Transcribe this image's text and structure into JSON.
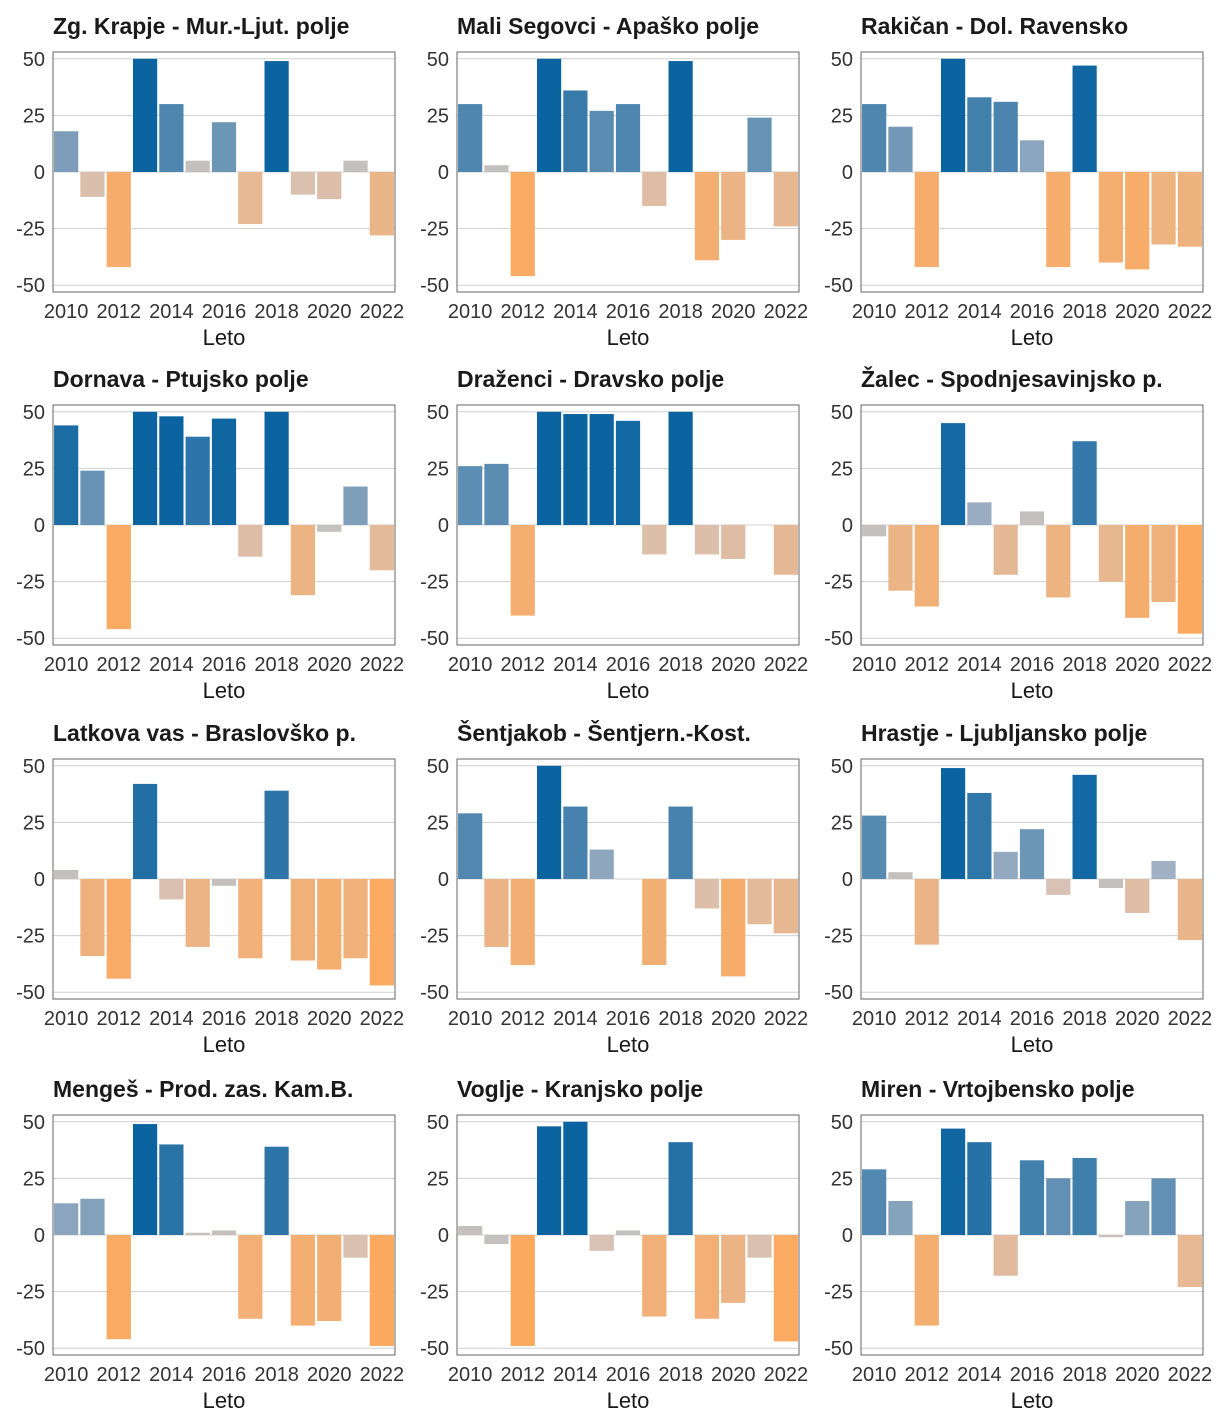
{
  "colors": {
    "blue_strong": "#0b64a0",
    "blue_pale": "#a8b4c4",
    "orange_strong": "#fba95f",
    "orange_pale": "#d7c2b7",
    "neutral": "#c4c0bd",
    "grid": "#d0d0d0",
    "border": "#666666"
  },
  "chart_data": [
    {
      "type": "bar",
      "title": "Zg. Krapje - Mur.-Ljut. polje",
      "xlabel": "Leto",
      "x": [
        2010,
        2011,
        2012,
        2013,
        2014,
        2015,
        2016,
        2017,
        2018,
        2019,
        2020,
        2021,
        2022
      ],
      "values": [
        18,
        -11,
        -42,
        50,
        30,
        5,
        22,
        -23,
        49,
        -10,
        -12,
        5,
        -28
      ],
      "ylim": [
        -53,
        53
      ],
      "yticks": [
        50,
        25,
        0,
        -25,
        -50
      ],
      "xticks": [
        2010,
        2012,
        2014,
        2016,
        2018,
        2020,
        2022
      ],
      "grid": true
    },
    {
      "type": "bar",
      "title": "Mali Segovci - Apaško polje",
      "xlabel": "Leto",
      "x": [
        2010,
        2011,
        2012,
        2013,
        2014,
        2015,
        2016,
        2017,
        2018,
        2019,
        2020,
        2021,
        2022
      ],
      "values": [
        30,
        3,
        -46,
        50,
        36,
        27,
        30,
        -15,
        49,
        -39,
        -30,
        24,
        -24
      ],
      "ylim": [
        -53,
        53
      ],
      "yticks": [
        50,
        25,
        0,
        -25,
        -50
      ],
      "xticks": [
        2010,
        2012,
        2014,
        2016,
        2018,
        2020,
        2022
      ],
      "grid": true
    },
    {
      "type": "bar",
      "title": "Rakičan - Dol. Ravensko",
      "xlabel": "Leto",
      "x": [
        2010,
        2011,
        2012,
        2013,
        2014,
        2015,
        2016,
        2017,
        2018,
        2019,
        2020,
        2021,
        2022
      ],
      "values": [
        30,
        20,
        -42,
        50,
        33,
        31,
        14,
        -42,
        47,
        -40,
        -43,
        -32,
        -33
      ],
      "ylim": [
        -53,
        53
      ],
      "yticks": [
        50,
        25,
        0,
        -25,
        -50
      ],
      "xticks": [
        2010,
        2012,
        2014,
        2016,
        2018,
        2020,
        2022
      ],
      "grid": true
    },
    {
      "type": "bar",
      "title": "Dornava - Ptujsko polje",
      "xlabel": "Leto",
      "x": [
        2010,
        2011,
        2012,
        2013,
        2014,
        2015,
        2016,
        2017,
        2018,
        2019,
        2020,
        2021,
        2022
      ],
      "values": [
        44,
        24,
        -46,
        50,
        48,
        39,
        47,
        -14,
        50,
        -31,
        -3,
        17,
        -20
      ],
      "ylim": [
        -53,
        53
      ],
      "yticks": [
        50,
        25,
        0,
        -25,
        -50
      ],
      "xticks": [
        2010,
        2012,
        2014,
        2016,
        2018,
        2020,
        2022
      ],
      "grid": true
    },
    {
      "type": "bar",
      "title": "Draženci - Dravsko polje",
      "xlabel": "Leto",
      "x": [
        2010,
        2011,
        2012,
        2013,
        2014,
        2015,
        2016,
        2017,
        2018,
        2019,
        2020,
        2021,
        2022
      ],
      "values": [
        26,
        27,
        -40,
        50,
        49,
        49,
        46,
        -13,
        50,
        -13,
        -15,
        0,
        -22
      ],
      "ylim": [
        -53,
        53
      ],
      "yticks": [
        50,
        25,
        0,
        -25,
        -50
      ],
      "xticks": [
        2010,
        2012,
        2014,
        2016,
        2018,
        2020,
        2022
      ],
      "grid": true
    },
    {
      "type": "bar",
      "title": "Žalec - Spodnjesavinjsko p.",
      "xlabel": "Leto",
      "x": [
        2010,
        2011,
        2012,
        2013,
        2014,
        2015,
        2016,
        2017,
        2018,
        2019,
        2020,
        2021,
        2022
      ],
      "values": [
        -5,
        -29,
        -36,
        45,
        10,
        -22,
        6,
        -32,
        37,
        -25,
        -41,
        -34,
        -48
      ],
      "ylim": [
        -53,
        53
      ],
      "yticks": [
        50,
        25,
        0,
        -25,
        -50
      ],
      "xticks": [
        2010,
        2012,
        2014,
        2016,
        2018,
        2020,
        2022
      ],
      "grid": true
    },
    {
      "type": "bar",
      "title": "Latkova vas - Braslovško p.",
      "xlabel": "Leto",
      "x": [
        2010,
        2011,
        2012,
        2013,
        2014,
        2015,
        2016,
        2017,
        2018,
        2019,
        2020,
        2021,
        2022
      ],
      "values": [
        4,
        -34,
        -44,
        42,
        -9,
        -30,
        -3,
        -35,
        39,
        -36,
        -40,
        -35,
        -47
      ],
      "ylim": [
        -53,
        53
      ],
      "yticks": [
        50,
        25,
        0,
        -25,
        -50
      ],
      "xticks": [
        2010,
        2012,
        2014,
        2016,
        2018,
        2020,
        2022
      ],
      "grid": true
    },
    {
      "type": "bar",
      "title": "Šentjakob - Šentjern.-Kost.",
      "xlabel": "Leto",
      "x": [
        2010,
        2011,
        2012,
        2013,
        2014,
        2015,
        2016,
        2017,
        2018,
        2019,
        2020,
        2021,
        2022
      ],
      "values": [
        29,
        -30,
        -38,
        50,
        32,
        13,
        0,
        -38,
        32,
        -13,
        -43,
        -20,
        -24
      ],
      "ylim": [
        -53,
        53
      ],
      "yticks": [
        50,
        25,
        0,
        -25,
        -50
      ],
      "xticks": [
        2010,
        2012,
        2014,
        2016,
        2018,
        2020,
        2022
      ],
      "grid": true
    },
    {
      "type": "bar",
      "title": "Hrastje - Ljubljansko polje",
      "xlabel": "Leto",
      "x": [
        2010,
        2011,
        2012,
        2013,
        2014,
        2015,
        2016,
        2017,
        2018,
        2019,
        2020,
        2021,
        2022
      ],
      "values": [
        28,
        3,
        -29,
        49,
        38,
        12,
        22,
        -7,
        46,
        -4,
        -15,
        8,
        -27
      ],
      "ylim": [
        -53,
        53
      ],
      "yticks": [
        50,
        25,
        0,
        -25,
        -50
      ],
      "xticks": [
        2010,
        2012,
        2014,
        2016,
        2018,
        2020,
        2022
      ],
      "grid": true
    },
    {
      "type": "bar",
      "title": "Mengeš - Prod. zas. Kam.B.",
      "xlabel": "Leto",
      "x": [
        2010,
        2011,
        2012,
        2013,
        2014,
        2015,
        2016,
        2017,
        2018,
        2019,
        2020,
        2021,
        2022
      ],
      "values": [
        14,
        16,
        -46,
        49,
        40,
        1,
        2,
        -37,
        39,
        -40,
        -38,
        -10,
        -49
      ],
      "ylim": [
        -53,
        53
      ],
      "yticks": [
        50,
        25,
        0,
        -25,
        -50
      ],
      "xticks": [
        2010,
        2012,
        2014,
        2016,
        2018,
        2020,
        2022
      ],
      "grid": true
    },
    {
      "type": "bar",
      "title": "Voglje - Kranjsko polje",
      "xlabel": "Leto",
      "x": [
        2010,
        2011,
        2012,
        2013,
        2014,
        2015,
        2016,
        2017,
        2018,
        2019,
        2020,
        2021,
        2022
      ],
      "values": [
        4,
        -4,
        -49,
        48,
        50,
        -7,
        2,
        -36,
        41,
        -37,
        -30,
        -10,
        -47
      ],
      "ylim": [
        -53,
        53
      ],
      "yticks": [
        50,
        25,
        0,
        -25,
        -50
      ],
      "xticks": [
        2010,
        2012,
        2014,
        2016,
        2018,
        2020,
        2022
      ],
      "grid": true
    },
    {
      "type": "bar",
      "title": "Miren - Vrtojbensko polje",
      "xlabel": "Leto",
      "x": [
        2010,
        2011,
        2012,
        2013,
        2014,
        2015,
        2016,
        2017,
        2018,
        2019,
        2020,
        2021,
        2022
      ],
      "values": [
        29,
        15,
        -40,
        47,
        41,
        -18,
        33,
        25,
        34,
        -1,
        15,
        25,
        -23
      ],
      "ylim": [
        -53,
        53
      ],
      "yticks": [
        50,
        25,
        0,
        -25,
        -50
      ],
      "xticks": [
        2010,
        2012,
        2014,
        2016,
        2018,
        2020,
        2022
      ],
      "grid": true
    }
  ]
}
